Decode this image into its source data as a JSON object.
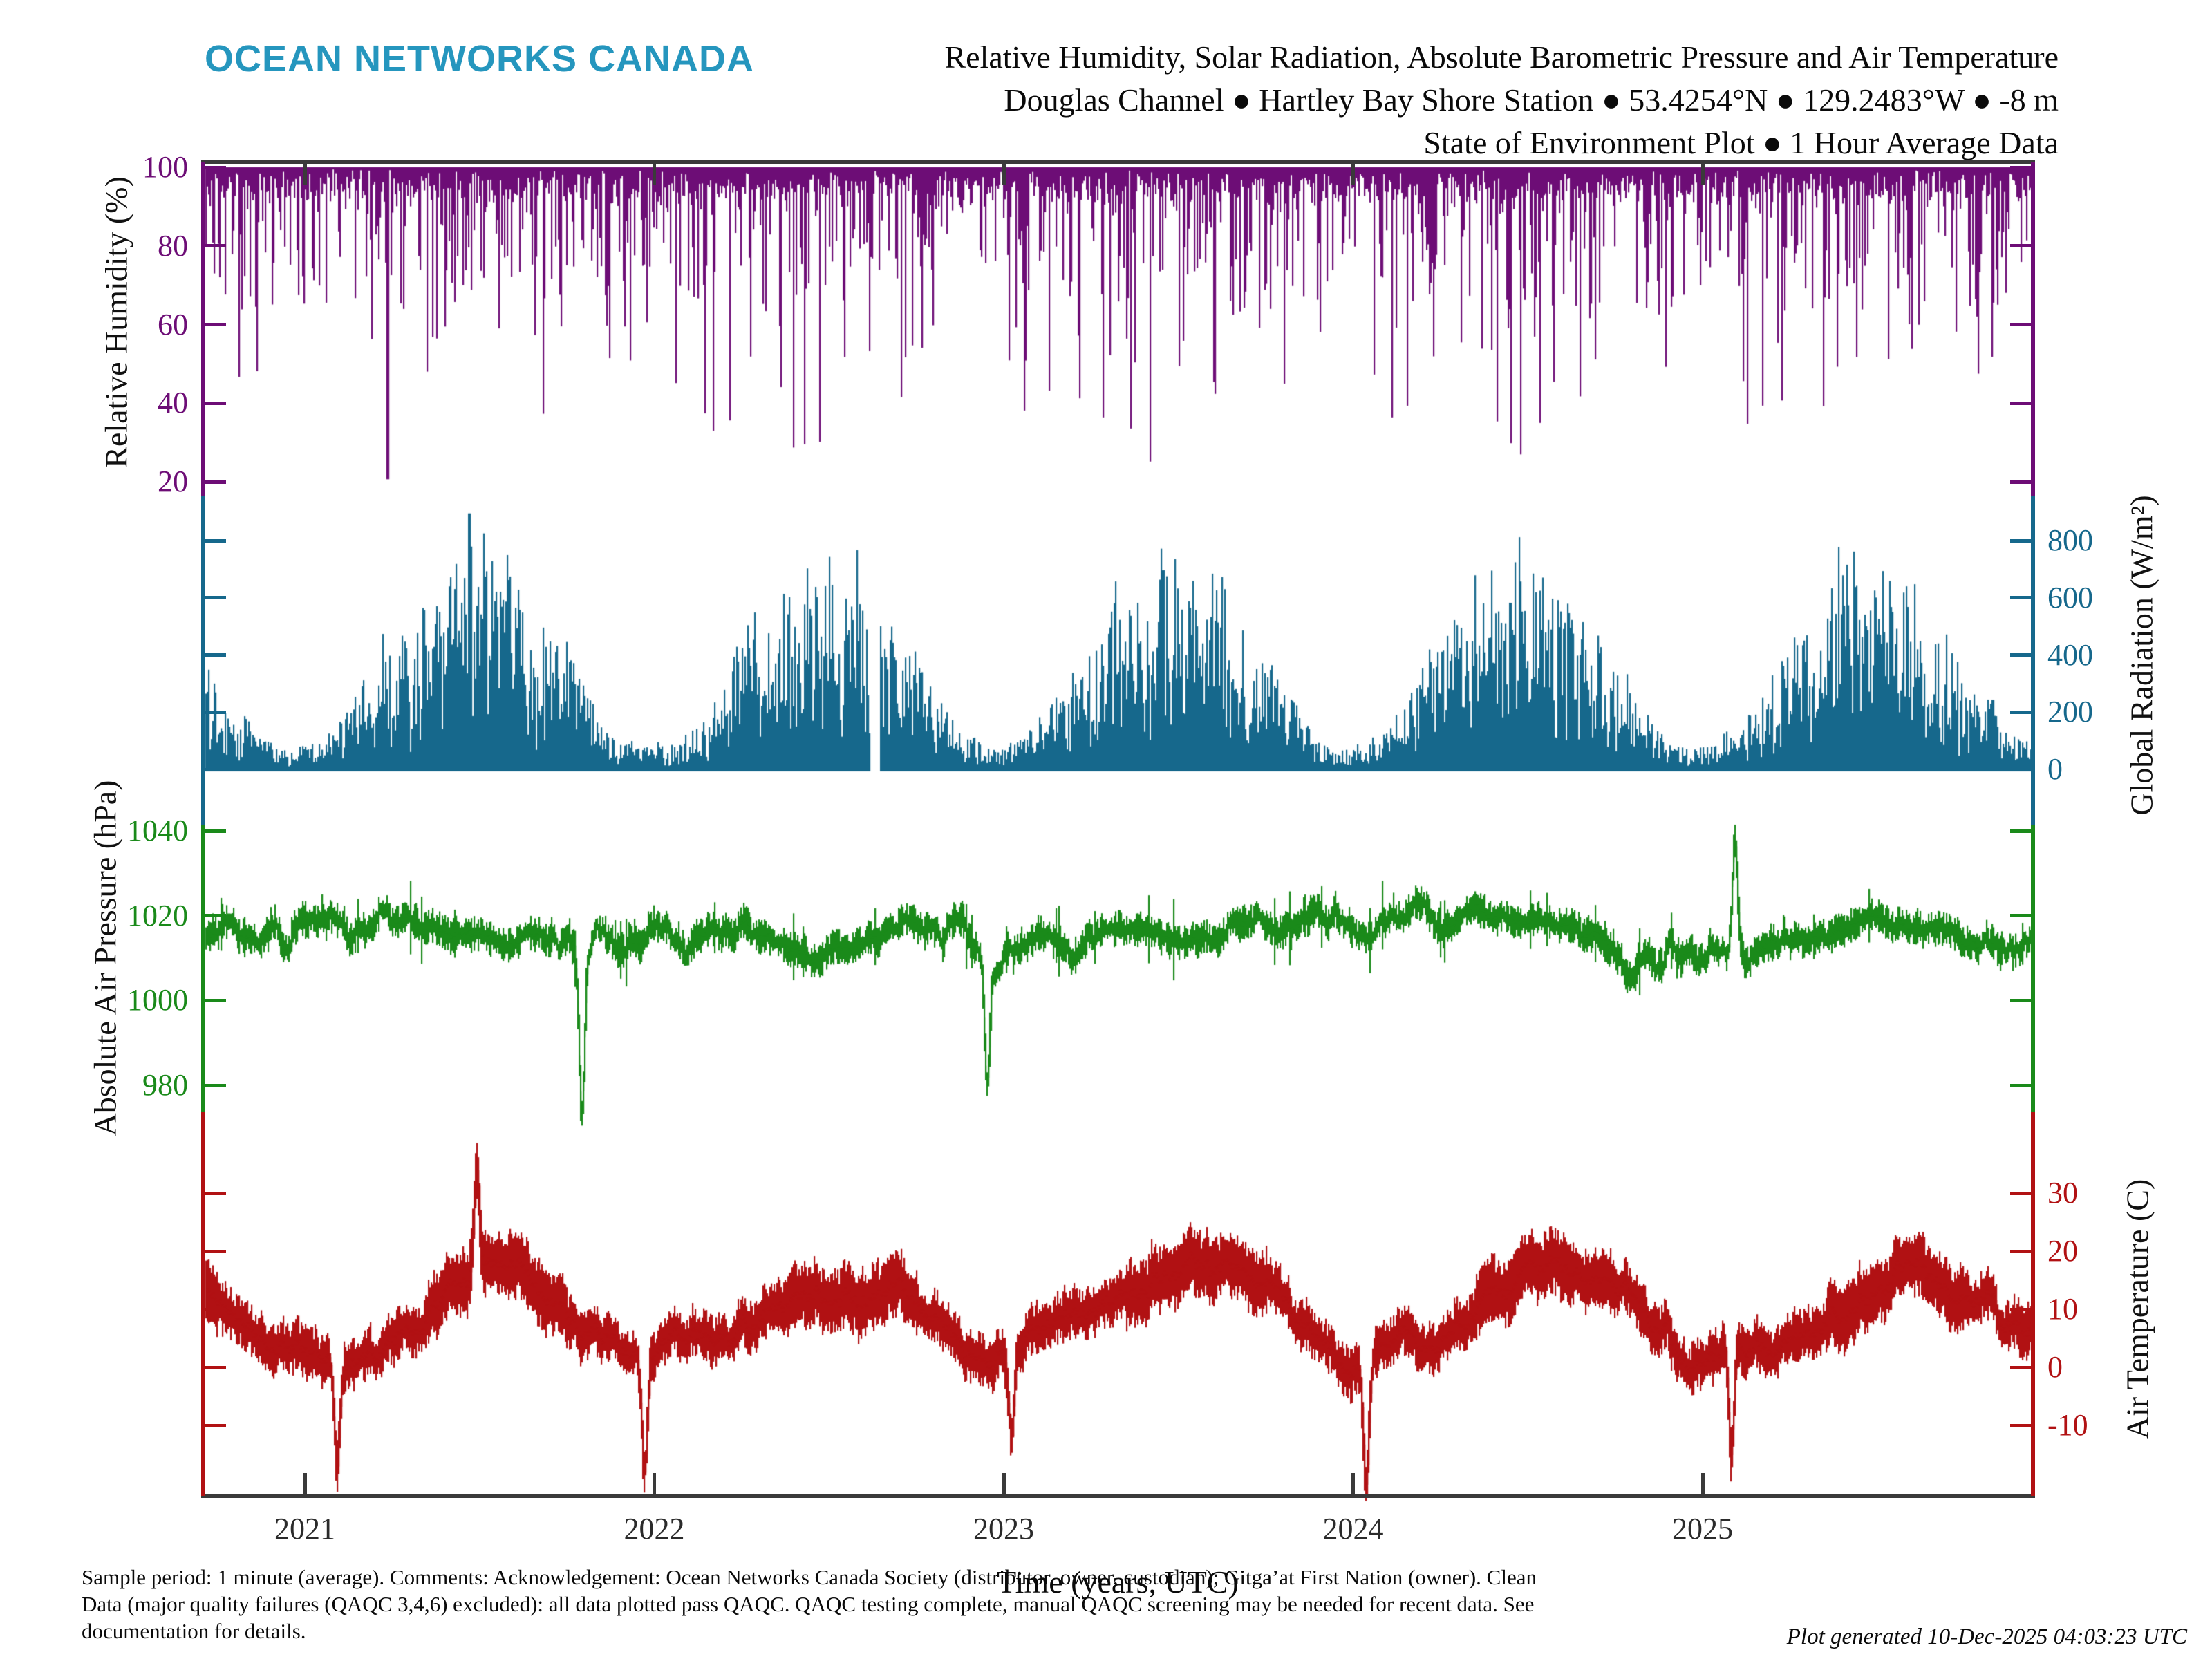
{
  "header": {
    "logo": "OCEAN NETWORKS CANADA",
    "logo_color": "#2596BE",
    "title_lines": [
      "Relative Humidity, Solar Radiation, Absolute Barometric Pressure and Air Temperature",
      "Douglas Channel ● Hartley Bay Shore Station ● 53.4254°N ● 129.2483°W ● -8 m",
      "State of Environment Plot ● 1 Hour Average Data"
    ]
  },
  "x_axis": {
    "label": "Time (years, UTC)",
    "tick_labels": [
      "2021",
      "2022",
      "2023",
      "2024",
      "2025"
    ],
    "tick_values": [
      2021,
      2022,
      2023,
      2024,
      2025
    ],
    "time_range": [
      2020.71,
      2025.95
    ],
    "frame_color": "#3a3a3a"
  },
  "footer": {
    "note_lines": [
      "Sample period: 1 minute (average). Comments: Acknowledgement: Ocean Networks Canada Society (distributor, owner, custodian); Gitga’at First Nation (owner). Clean",
      "Data (major quality failures (QAQC 3,4,6) excluded): all data plotted pass QAQC. QAQC testing complete, manual QAQC screening may be needed for recent data. See",
      "documentation for details."
    ],
    "generated": "Plot generated 10-Dec-2025 04:03:23 UTC"
  },
  "chart_data": [
    {
      "id": "relative_humidity",
      "type": "line",
      "style": "needles-from-top",
      "name": "Relative Humidity",
      "axis_label": "Relative Humidity (%)",
      "unit": "%",
      "color": "#6D0D76",
      "label_side": "left",
      "yticks": [
        100,
        80,
        60,
        40,
        20
      ],
      "ylim": [
        20,
        100
      ],
      "baseline": 100,
      "seed": 11,
      "monthly_low": [
        40,
        35,
        30,
        25,
        22,
        25,
        28,
        32,
        36,
        44,
        50,
        48
      ],
      "min_event": {
        "t": 2021.235,
        "value": 21
      }
    },
    {
      "id": "global_radiation",
      "type": "line",
      "style": "spikes-from-zero",
      "name": "Global Radiation",
      "axis_label": "Global Radiation (W/m²)",
      "unit": "W/m²",
      "color": "#16688C",
      "label_side": "right",
      "yticks": [
        800,
        600,
        400,
        200,
        0
      ],
      "ylim": [
        0,
        900
      ],
      "baseline": 0,
      "seed": 22,
      "monthly_max": [
        110,
        250,
        430,
        620,
        780,
        865,
        845,
        750,
        560,
        330,
        150,
        85
      ],
      "max_event": {
        "t": 2021.47,
        "value": 895
      },
      "gaps": [
        [
          2022.615,
          2022.645
        ]
      ]
    },
    {
      "id": "air_pressure",
      "type": "line",
      "style": "noisy-line",
      "name": "Absolute Air Pressure",
      "axis_label": "Absolute Air Pressure (hPa)",
      "unit": "hPa",
      "color": "#1A8A1A",
      "label_side": "left",
      "yticks": [
        1040,
        1020,
        1000,
        980
      ],
      "ylim": [
        972,
        1039
      ],
      "seed": 33,
      "monthly_mean": [
        1013,
        1014,
        1015,
        1016,
        1016.5,
        1016,
        1016,
        1015.5,
        1015,
        1013.5,
        1013,
        1013
      ],
      "monthly_spread": [
        16,
        14,
        12,
        10,
        8,
        7,
        7,
        8,
        10,
        13,
        15,
        16
      ],
      "events": [
        {
          "t": 2021.79,
          "value": 973
        },
        {
          "t": 2022.95,
          "value": 980
        },
        {
          "t": 2025.09,
          "value": 1038
        }
      ]
    },
    {
      "id": "air_temperature",
      "type": "line",
      "style": "noisy-line",
      "name": "Air Temperature",
      "axis_label": "Air Temperature (C)",
      "unit": "°C",
      "color": "#B11113",
      "label_side": "right",
      "yticks": [
        30,
        20,
        10,
        0,
        -10
      ],
      "ylim": [
        -20,
        34
      ],
      "seed": 44,
      "monthly_mean": [
        2.5,
        3.5,
        5,
        8,
        11.5,
        14.5,
        16.5,
        17,
        14,
        9.5,
        5,
        2.5
      ],
      "monthly_spread": [
        9,
        8,
        8,
        8,
        9,
        9,
        9,
        9,
        8,
        8,
        9,
        9
      ],
      "events": [
        {
          "t": 2021.49,
          "value": 34
        },
        {
          "t": 2021.09,
          "value": -17
        },
        {
          "t": 2021.97,
          "value": -18
        },
        {
          "t": 2023.02,
          "value": -12
        },
        {
          "t": 2024.035,
          "value": -20
        },
        {
          "t": 2025.08,
          "value": -15
        }
      ]
    }
  ]
}
